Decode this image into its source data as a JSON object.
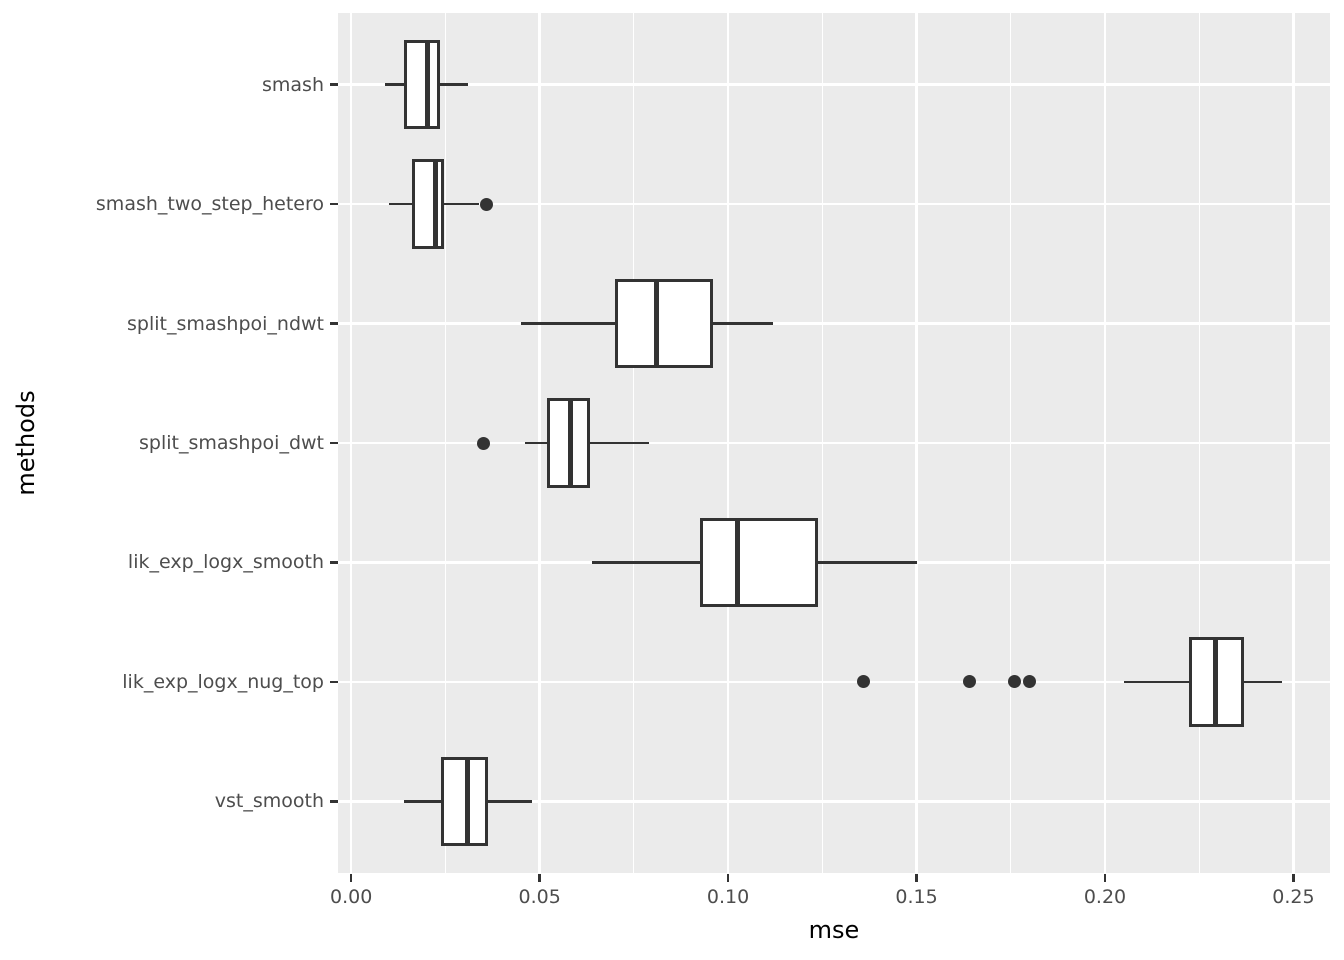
{
  "figure": {
    "x_axis_title": "mse",
    "y_axis_title": "methods"
  },
  "chart_data": {
    "type": "boxplot",
    "orientation": "horizontal",
    "title": "",
    "xlabel": "mse",
    "ylabel": "methods",
    "xlim": [
      -0.0035,
      0.2597
    ],
    "x_major_ticks": [
      0.0,
      0.05,
      0.1,
      0.15,
      0.2,
      0.25
    ],
    "x_tick_labels": [
      "0.00",
      "0.05",
      "0.10",
      "0.15",
      "0.20",
      "0.25"
    ],
    "x_minor_ticks": [
      0.025,
      0.075,
      0.125,
      0.175,
      0.225
    ],
    "grid": "on",
    "legend": "none",
    "categories_top_to_bottom": [
      "smash",
      "smash_two_step_hetero",
      "split_smashpoi_ndwt",
      "split_smashpoi_dwt",
      "lik_exp_logx_smooth",
      "lik_exp_logx_nug_top",
      "vst_smooth"
    ],
    "series": [
      {
        "name": "smash",
        "whisker_min": 0.009,
        "q1": 0.0143,
        "median": 0.0202,
        "q3": 0.0232,
        "whisker_max": 0.031,
        "outliers": []
      },
      {
        "name": "smash_two_step_hetero",
        "whisker_min": 0.01,
        "q1": 0.0165,
        "median": 0.0223,
        "q3": 0.0241,
        "whisker_max": 0.034,
        "outliers": [
          0.036
        ]
      },
      {
        "name": "split_smashpoi_ndwt",
        "whisker_min": 0.045,
        "q1": 0.0705,
        "median": 0.0811,
        "q3": 0.0957,
        "whisker_max": 0.112,
        "outliers": []
      },
      {
        "name": "split_smashpoi_dwt",
        "whisker_min": 0.046,
        "q1": 0.0523,
        "median": 0.0581,
        "q3": 0.063,
        "whisker_max": 0.079,
        "outliers": [
          0.035
        ]
      },
      {
        "name": "lik_exp_logx_smooth",
        "whisker_min": 0.064,
        "q1": 0.093,
        "median": 0.1026,
        "q3": 0.1235,
        "whisker_max": 0.15,
        "outliers": []
      },
      {
        "name": "lik_exp_logx_nug_top",
        "whisker_min": 0.205,
        "q1": 0.2226,
        "median": 0.2292,
        "q3": 0.2364,
        "whisker_max": 0.247,
        "outliers": [
          0.136,
          0.164,
          0.176,
          0.18
        ]
      },
      {
        "name": "vst_smooth",
        "whisker_min": 0.014,
        "q1": 0.0241,
        "median": 0.0308,
        "q3": 0.036,
        "whisker_max": 0.048,
        "outliers": []
      }
    ],
    "colors": {
      "panel_bg": "#EBEBEB",
      "grid": "#FFFFFF",
      "box_border": "#333333",
      "box_fill": "#FFFFFF",
      "outlier": "#333333",
      "axis_text": "#4D4D4D",
      "axis_title": "#000000"
    }
  }
}
